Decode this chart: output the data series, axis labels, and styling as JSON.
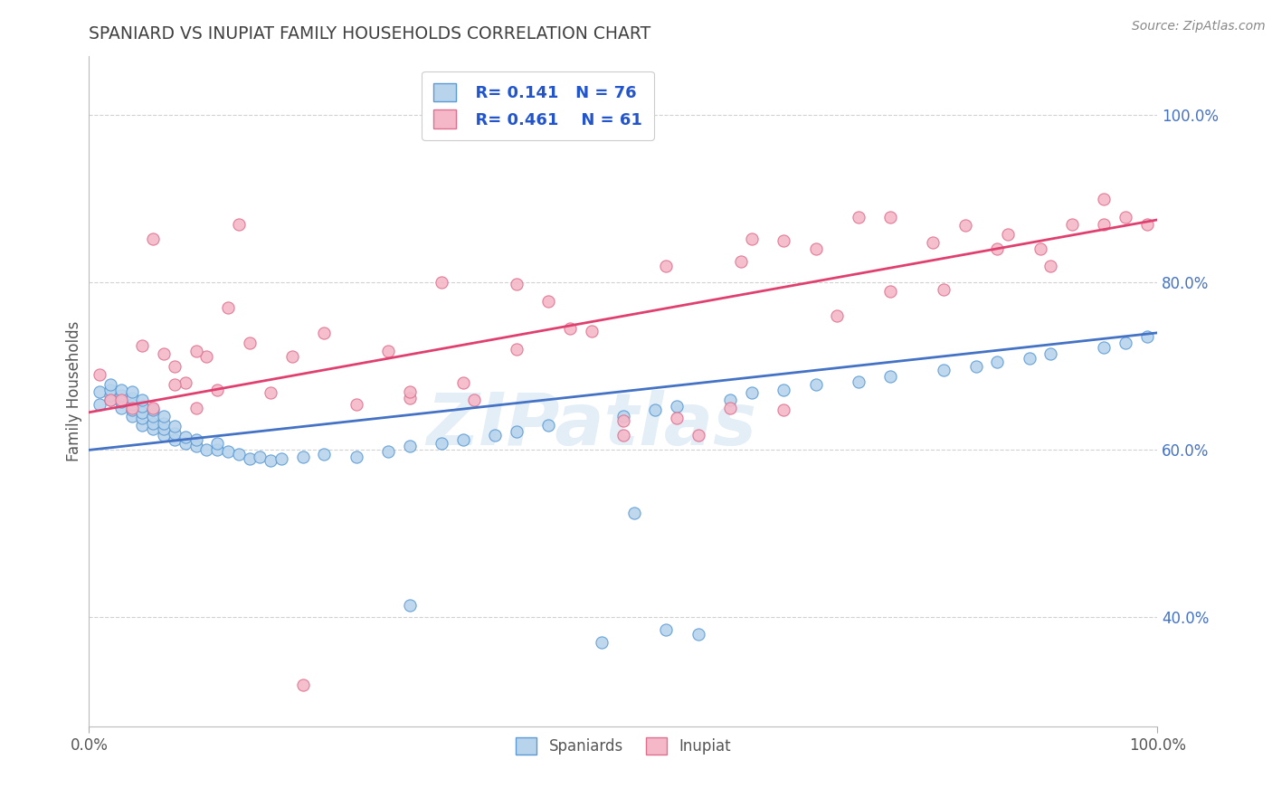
{
  "title": "SPANIARD VS INUPIAT FAMILY HOUSEHOLDS CORRELATION CHART",
  "source_text": "Source: ZipAtlas.com",
  "ylabel": "Family Households",
  "xlim": [
    0.0,
    1.0
  ],
  "ylim": [
    0.27,
    1.07
  ],
  "xtick_labels": [
    "0.0%",
    "100.0%"
  ],
  "ytick_labels": [
    "40.0%",
    "60.0%",
    "80.0%",
    "100.0%"
  ],
  "ytick_positions": [
    0.4,
    0.6,
    0.8,
    1.0
  ],
  "watermark_text": "ZIPatlas",
  "legend_blue_label": "Spaniards",
  "legend_pink_label": "Inupiat",
  "R_blue": "0.141",
  "N_blue": "76",
  "R_pink": "0.461",
  "N_pink": "61",
  "blue_fill_color": "#b8d4ec",
  "pink_fill_color": "#f4b8c8",
  "blue_edge_color": "#5b9bd5",
  "pink_edge_color": "#e07090",
  "blue_line_color": "#4472c4",
  "pink_line_color": "#e04070",
  "title_color": "#404040",
  "source_color": "#888888",
  "r_n_text_color": "#2255cc",
  "ytick_color": "#4472c4",
  "grid_color": "#cccccc",
  "background_color": "#ffffff",
  "blue_scatter_x": [
    0.01,
    0.01,
    0.02,
    0.02,
    0.02,
    0.02,
    0.03,
    0.03,
    0.03,
    0.03,
    0.04,
    0.04,
    0.04,
    0.04,
    0.04,
    0.05,
    0.05,
    0.05,
    0.05,
    0.05,
    0.06,
    0.06,
    0.06,
    0.06,
    0.07,
    0.07,
    0.07,
    0.07,
    0.08,
    0.08,
    0.08,
    0.09,
    0.09,
    0.1,
    0.1,
    0.11,
    0.12,
    0.12,
    0.13,
    0.14,
    0.15,
    0.16,
    0.17,
    0.18,
    0.2,
    0.22,
    0.25,
    0.28,
    0.3,
    0.33,
    0.35,
    0.38,
    0.4,
    0.43,
    0.5,
    0.53,
    0.55,
    0.6,
    0.62,
    0.65,
    0.68,
    0.72,
    0.75,
    0.8,
    0.83,
    0.85,
    0.88,
    0.9,
    0.95,
    0.97,
    0.99,
    0.48,
    0.51,
    0.54,
    0.57,
    0.3
  ],
  "blue_scatter_y": [
    0.655,
    0.67,
    0.66,
    0.665,
    0.672,
    0.678,
    0.65,
    0.658,
    0.665,
    0.672,
    0.64,
    0.648,
    0.655,
    0.662,
    0.67,
    0.63,
    0.638,
    0.645,
    0.652,
    0.66,
    0.625,
    0.632,
    0.64,
    0.648,
    0.618,
    0.625,
    0.632,
    0.64,
    0.612,
    0.62,
    0.628,
    0.608,
    0.616,
    0.605,
    0.612,
    0.6,
    0.6,
    0.608,
    0.598,
    0.595,
    0.59,
    0.592,
    0.588,
    0.59,
    0.592,
    0.595,
    0.592,
    0.598,
    0.605,
    0.608,
    0.612,
    0.618,
    0.622,
    0.63,
    0.64,
    0.648,
    0.652,
    0.66,
    0.668,
    0.672,
    0.678,
    0.682,
    0.688,
    0.695,
    0.7,
    0.705,
    0.71,
    0.715,
    0.722,
    0.728,
    0.735,
    0.37,
    0.525,
    0.385,
    0.38,
    0.415
  ],
  "pink_scatter_x": [
    0.01,
    0.02,
    0.03,
    0.04,
    0.05,
    0.06,
    0.07,
    0.08,
    0.09,
    0.1,
    0.11,
    0.13,
    0.15,
    0.17,
    0.19,
    0.22,
    0.25,
    0.28,
    0.3,
    0.33,
    0.36,
    0.4,
    0.43,
    0.47,
    0.5,
    0.54,
    0.57,
    0.61,
    0.65,
    0.68,
    0.72,
    0.75,
    0.79,
    0.82,
    0.86,
    0.89,
    0.92,
    0.95,
    0.97,
    0.99,
    0.62,
    0.65,
    0.7,
    0.75,
    0.8,
    0.85,
    0.9,
    0.95,
    0.06,
    0.08,
    0.1,
    0.12,
    0.14,
    0.3,
    0.35,
    0.4,
    0.5,
    0.55,
    0.6,
    0.45,
    0.2
  ],
  "pink_scatter_y": [
    0.69,
    0.66,
    0.66,
    0.65,
    0.725,
    0.65,
    0.715,
    0.7,
    0.68,
    0.65,
    0.712,
    0.77,
    0.728,
    0.668,
    0.712,
    0.74,
    0.655,
    0.718,
    0.662,
    0.8,
    0.66,
    0.798,
    0.778,
    0.742,
    0.618,
    0.82,
    0.618,
    0.825,
    0.85,
    0.84,
    0.878,
    0.878,
    0.848,
    0.868,
    0.858,
    0.84,
    0.87,
    0.9,
    0.878,
    0.87,
    0.852,
    0.648,
    0.76,
    0.79,
    0.792,
    0.84,
    0.82,
    0.87,
    0.852,
    0.678,
    0.718,
    0.672,
    0.87,
    0.67,
    0.68,
    0.72,
    0.635,
    0.638,
    0.65,
    0.745,
    0.32
  ],
  "blue_line_x": [
    0.0,
    1.0
  ],
  "blue_line_y": [
    0.6,
    0.74
  ],
  "pink_line_x": [
    0.0,
    1.0
  ],
  "pink_line_y": [
    0.645,
    0.875
  ]
}
